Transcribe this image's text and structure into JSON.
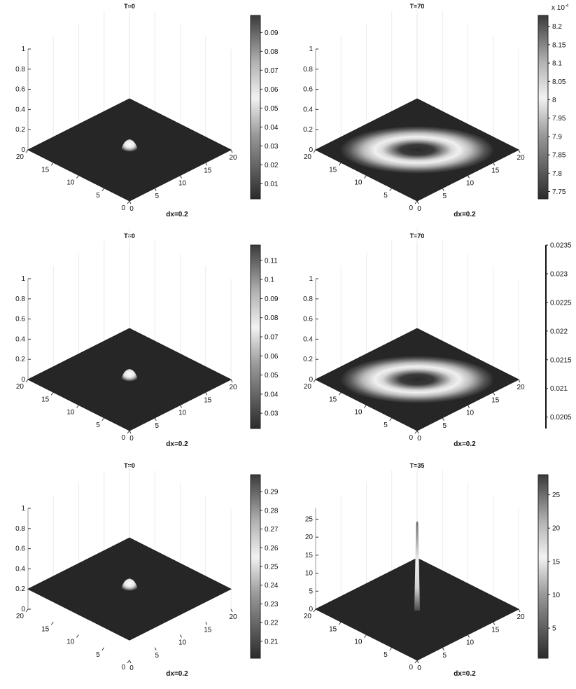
{
  "chart_data": [
    {
      "type": "heatmap",
      "surface": "gaussian-bump",
      "title": "T=0",
      "xlabel": "dx=0.2",
      "x_ticks": [
        "0",
        "5",
        "10",
        "15",
        "20"
      ],
      "y_ticks": [
        "0",
        "5",
        "10",
        "15",
        "20"
      ],
      "z_ticks": [
        "0",
        "0.2",
        "0.4",
        "0.6",
        "0.8",
        "1"
      ],
      "zlim": [
        0,
        1
      ],
      "base_level": 0,
      "peak_height": 0.1,
      "colorbar": {
        "ticks": [
          "0.01",
          "0.02",
          "0.03",
          "0.04",
          "0.05",
          "0.06",
          "0.07",
          "0.08",
          "0.09"
        ],
        "range": [
          0.002,
          0.099
        ],
        "exponent": ""
      }
    },
    {
      "type": "heatmap",
      "surface": "ring",
      "title": "T=70",
      "xlabel": "dx=0.2",
      "x_ticks": [
        "0",
        "5",
        "10",
        "15",
        "20"
      ],
      "y_ticks": [
        "0",
        "5",
        "10",
        "15",
        "20"
      ],
      "z_ticks": [
        "0",
        "0.2",
        "0.4",
        "0.6",
        "0.8",
        "1"
      ],
      "zlim": [
        0,
        1
      ],
      "base_level": 0,
      "colorbar": {
        "ticks": [
          "7.75",
          "7.8",
          "7.85",
          "7.9",
          "7.95",
          "8",
          "8.05",
          "8.1",
          "8.15",
          "8.2"
        ],
        "range": [
          7.73,
          8.23
        ],
        "exponent": "x 10",
        "exponent_power": "-4"
      }
    },
    {
      "type": "heatmap",
      "surface": "gaussian-bump",
      "title": "T=0",
      "xlabel": "dx=0.2",
      "x_ticks": [
        "0",
        "5",
        "10",
        "15",
        "20"
      ],
      "y_ticks": [
        "0",
        "5",
        "10",
        "15",
        "20"
      ],
      "z_ticks": [
        "0",
        "0.2",
        "0.4",
        "0.6",
        "0.8",
        "1"
      ],
      "zlim": [
        0,
        1
      ],
      "base_level": 0,
      "peak_height": 0.12,
      "colorbar": {
        "ticks": [
          "0.03",
          "0.04",
          "0.05",
          "0.06",
          "0.07",
          "0.08",
          "0.09",
          "0.1",
          "0.11"
        ],
        "range": [
          0.022,
          0.118
        ],
        "exponent": ""
      }
    },
    {
      "type": "heatmap",
      "surface": "ring",
      "title": "T=70",
      "xlabel": "dx=0.2",
      "x_ticks": [
        "0",
        "5",
        "10",
        "15",
        "20"
      ],
      "y_ticks": [
        "0",
        "5",
        "10",
        "15",
        "20"
      ],
      "z_ticks": [
        "0",
        "0.2",
        "0.4",
        "0.6",
        "0.8",
        "1"
      ],
      "zlim": [
        0,
        1
      ],
      "base_level": 0,
      "colorbar": {
        "ticks": [
          "0.0205",
          "0.021",
          "0.0215",
          "0.022",
          "0.0225",
          "0.023",
          "0.0235"
        ],
        "range": [
          0.0203,
          0.0235
        ],
        "exponent": "",
        "style": "line-only"
      }
    },
    {
      "type": "heatmap",
      "surface": "gaussian-bump",
      "title": "T=0",
      "xlabel": "dx=0.2",
      "x_ticks": [
        "0",
        "5",
        "10",
        "15",
        "20"
      ],
      "y_ticks": [
        "0",
        "5",
        "10",
        "15",
        "20"
      ],
      "z_ticks": [
        "0",
        "0.2",
        "0.4",
        "0.6",
        "0.8",
        "1"
      ],
      "zlim": [
        0,
        1
      ],
      "base_level": 0.2,
      "peak_height": 0.3,
      "colorbar": {
        "ticks": [
          "0.21",
          "0.22",
          "0.23",
          "0.24",
          "0.25",
          "0.26",
          "0.27",
          "0.28",
          "0.29"
        ],
        "range": [
          0.201,
          0.299
        ],
        "exponent": ""
      }
    },
    {
      "type": "heatmap",
      "surface": "spike",
      "title": "T=35",
      "xlabel": "dx=0.2",
      "x_ticks": [
        "0",
        "5",
        "10",
        "15",
        "20"
      ],
      "y_ticks": [
        "0",
        "5",
        "10",
        "15",
        "20"
      ],
      "z_ticks": [
        "0",
        "5",
        "10",
        "15",
        "20",
        "25"
      ],
      "zlim": [
        0,
        28
      ],
      "base_level": 0,
      "peak_height": 25,
      "colorbar": {
        "ticks": [
          "5",
          "10",
          "15",
          "20",
          "25"
        ],
        "range": [
          0.5,
          28
        ],
        "exponent": ""
      }
    }
  ]
}
